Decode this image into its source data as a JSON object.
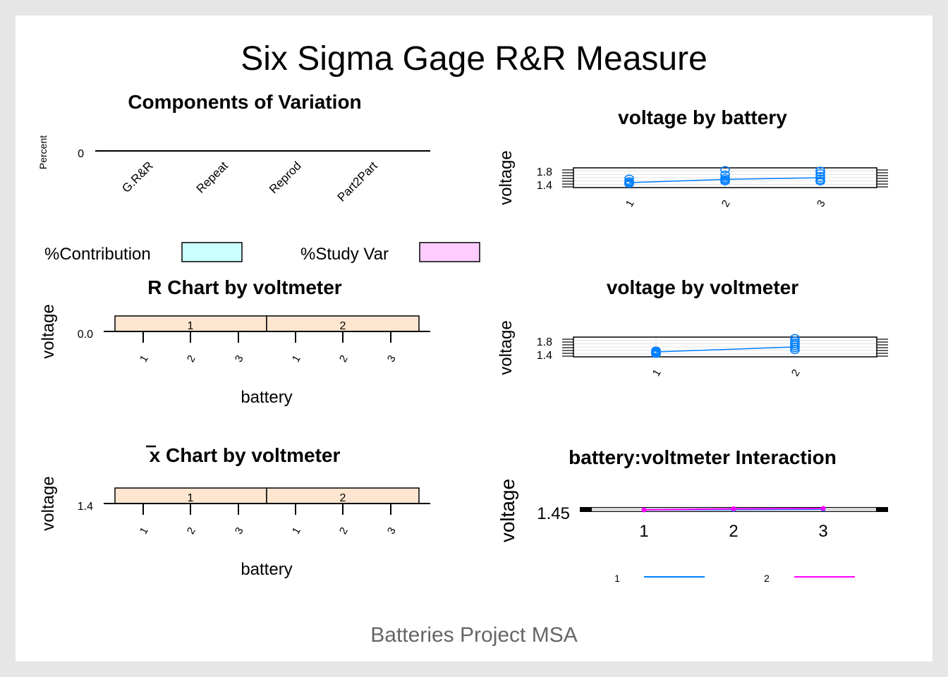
{
  "page": {
    "title": "Six Sigma Gage R&R Measure",
    "footer": "Batteries Project MSA"
  },
  "colors": {
    "contribution": "#ccffff",
    "study_var": "#ffccff",
    "strip": "#fde5cf",
    "series1": "#0080ff",
    "series2": "#ff00ff",
    "footer": "#666666",
    "grid": "#e0e0e0"
  },
  "chart_data": [
    {
      "id": "components",
      "type": "bar",
      "title": "Components of Variation",
      "ylabel": "Percent",
      "ytick": "0",
      "categories": [
        "G.R&R",
        "Repeat",
        "Reprod",
        "Part2Part"
      ],
      "series": [
        {
          "name": "%Contribution",
          "values": [
            0,
            0,
            0,
            0
          ]
        },
        {
          "name": "%Study Var",
          "values": [
            0,
            0,
            0,
            0
          ]
        }
      ],
      "legend": [
        "%Contribution",
        "%Study Var"
      ]
    },
    {
      "id": "by_battery",
      "type": "scatter",
      "title": "voltage by battery",
      "ylabel": "voltage",
      "yticks": [
        "1.8",
        "1.4"
      ],
      "ylim": [
        1.3,
        1.9
      ],
      "categories": [
        "1",
        "2",
        "3"
      ],
      "points": [
        {
          "x": "1",
          "y": [
            1.58,
            1.5,
            1.46,
            1.44,
            1.42,
            1.41
          ]
        },
        {
          "x": "2",
          "y": [
            1.84,
            1.7,
            1.6,
            1.55,
            1.52,
            1.48
          ]
        },
        {
          "x": "3",
          "y": [
            1.82,
            1.75,
            1.66,
            1.58,
            1.52,
            1.48
          ]
        }
      ],
      "means": [
        1.45,
        1.55,
        1.6
      ]
    },
    {
      "id": "r_chart",
      "type": "line",
      "title": "R Chart by voltmeter",
      "ylabel": "voltage",
      "xlabel": "battery",
      "ytick": "0.0",
      "panels": [
        "1",
        "2"
      ],
      "categories": [
        "1",
        "2",
        "3"
      ]
    },
    {
      "id": "by_voltmeter",
      "type": "scatter",
      "title": "voltage by voltmeter",
      "ylabel": "voltage",
      "yticks": [
        "1.8",
        "1.4"
      ],
      "ylim": [
        1.3,
        1.9
      ],
      "categories": [
        "1",
        "2"
      ],
      "points": [
        {
          "x": "1",
          "y": [
            1.5,
            1.47,
            1.45,
            1.43,
            1.42,
            1.4,
            1.38
          ]
        },
        {
          "x": "2",
          "y": [
            1.88,
            1.8,
            1.74,
            1.68,
            1.62,
            1.56,
            1.5
          ]
        }
      ],
      "means": [
        1.45,
        1.6
      ]
    },
    {
      "id": "xbar_chart",
      "type": "line",
      "title": "x Chart by voltmeter",
      "ylabel": "voltage",
      "xlabel": "battery",
      "ytick": "1.4",
      "panels": [
        "1",
        "2"
      ],
      "categories": [
        "1",
        "2",
        "3"
      ]
    },
    {
      "id": "interaction",
      "type": "line",
      "title": "battery:voltmeter Interaction",
      "ylabel": "voltage",
      "ytick": "1.45",
      "categories": [
        "1",
        "2",
        "3"
      ],
      "series": [
        {
          "name": "1",
          "values": [
            1.45,
            1.452,
            1.454
          ]
        },
        {
          "name": "2",
          "values": [
            1.45,
            1.456,
            1.458
          ]
        }
      ],
      "legend": [
        "1",
        "2"
      ]
    }
  ]
}
